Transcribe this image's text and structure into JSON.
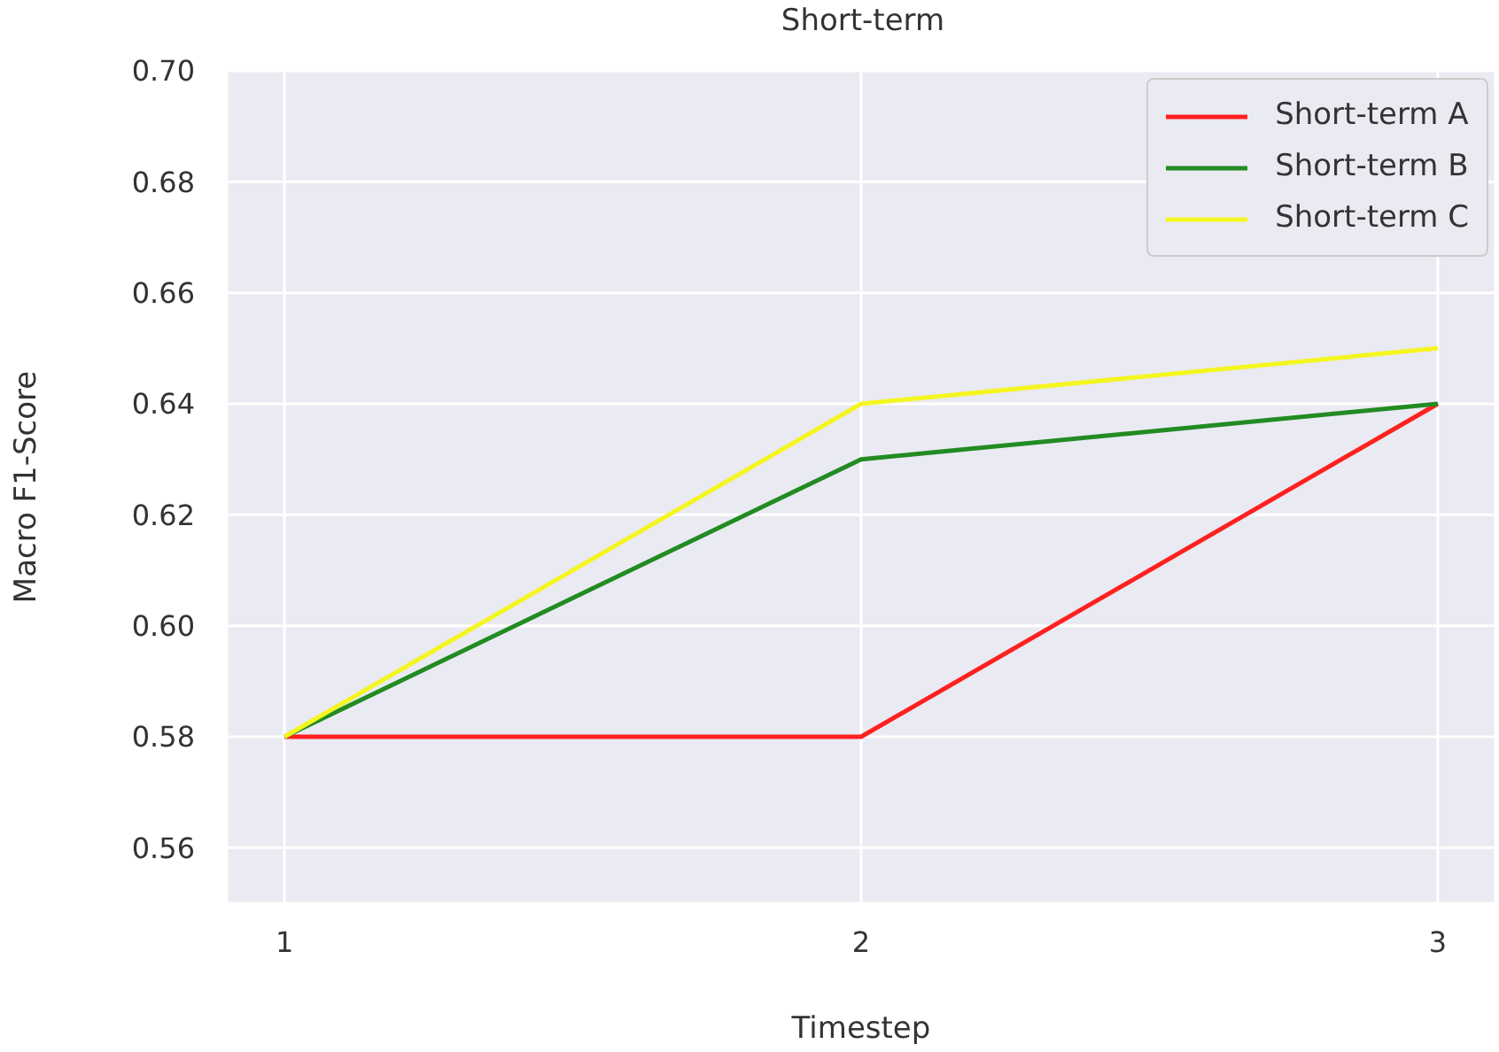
{
  "chart_data": {
    "type": "line",
    "title": "Short-term",
    "xlabel": "Timestep",
    "ylabel": "Macro F1-Score",
    "x": [
      1,
      2,
      3
    ],
    "series": [
      {
        "name": "Short-term A",
        "color": "#ff2020",
        "values": [
          0.58,
          0.58,
          0.64
        ]
      },
      {
        "name": "Short-term B",
        "color": "#228b22",
        "values": [
          0.58,
          0.63,
          0.64
        ]
      },
      {
        "name": "Short-term C",
        "color": "#f5f520",
        "values": [
          0.58,
          0.64,
          0.65
        ]
      }
    ],
    "xlim": [
      0.9,
      3.1
    ],
    "xticks": [
      1,
      2,
      3
    ],
    "ylim": [
      0.55,
      0.7
    ],
    "yticks": [
      0.56,
      0.58,
      {
        "value": 0.6,
        "label": "0.60"
      },
      0.62,
      0.64,
      0.66,
      0.68,
      {
        "value": 0.7,
        "label": "0.70"
      }
    ],
    "grid": true,
    "legend": "top right",
    "marker": "none",
    "line_style": "solid"
  }
}
